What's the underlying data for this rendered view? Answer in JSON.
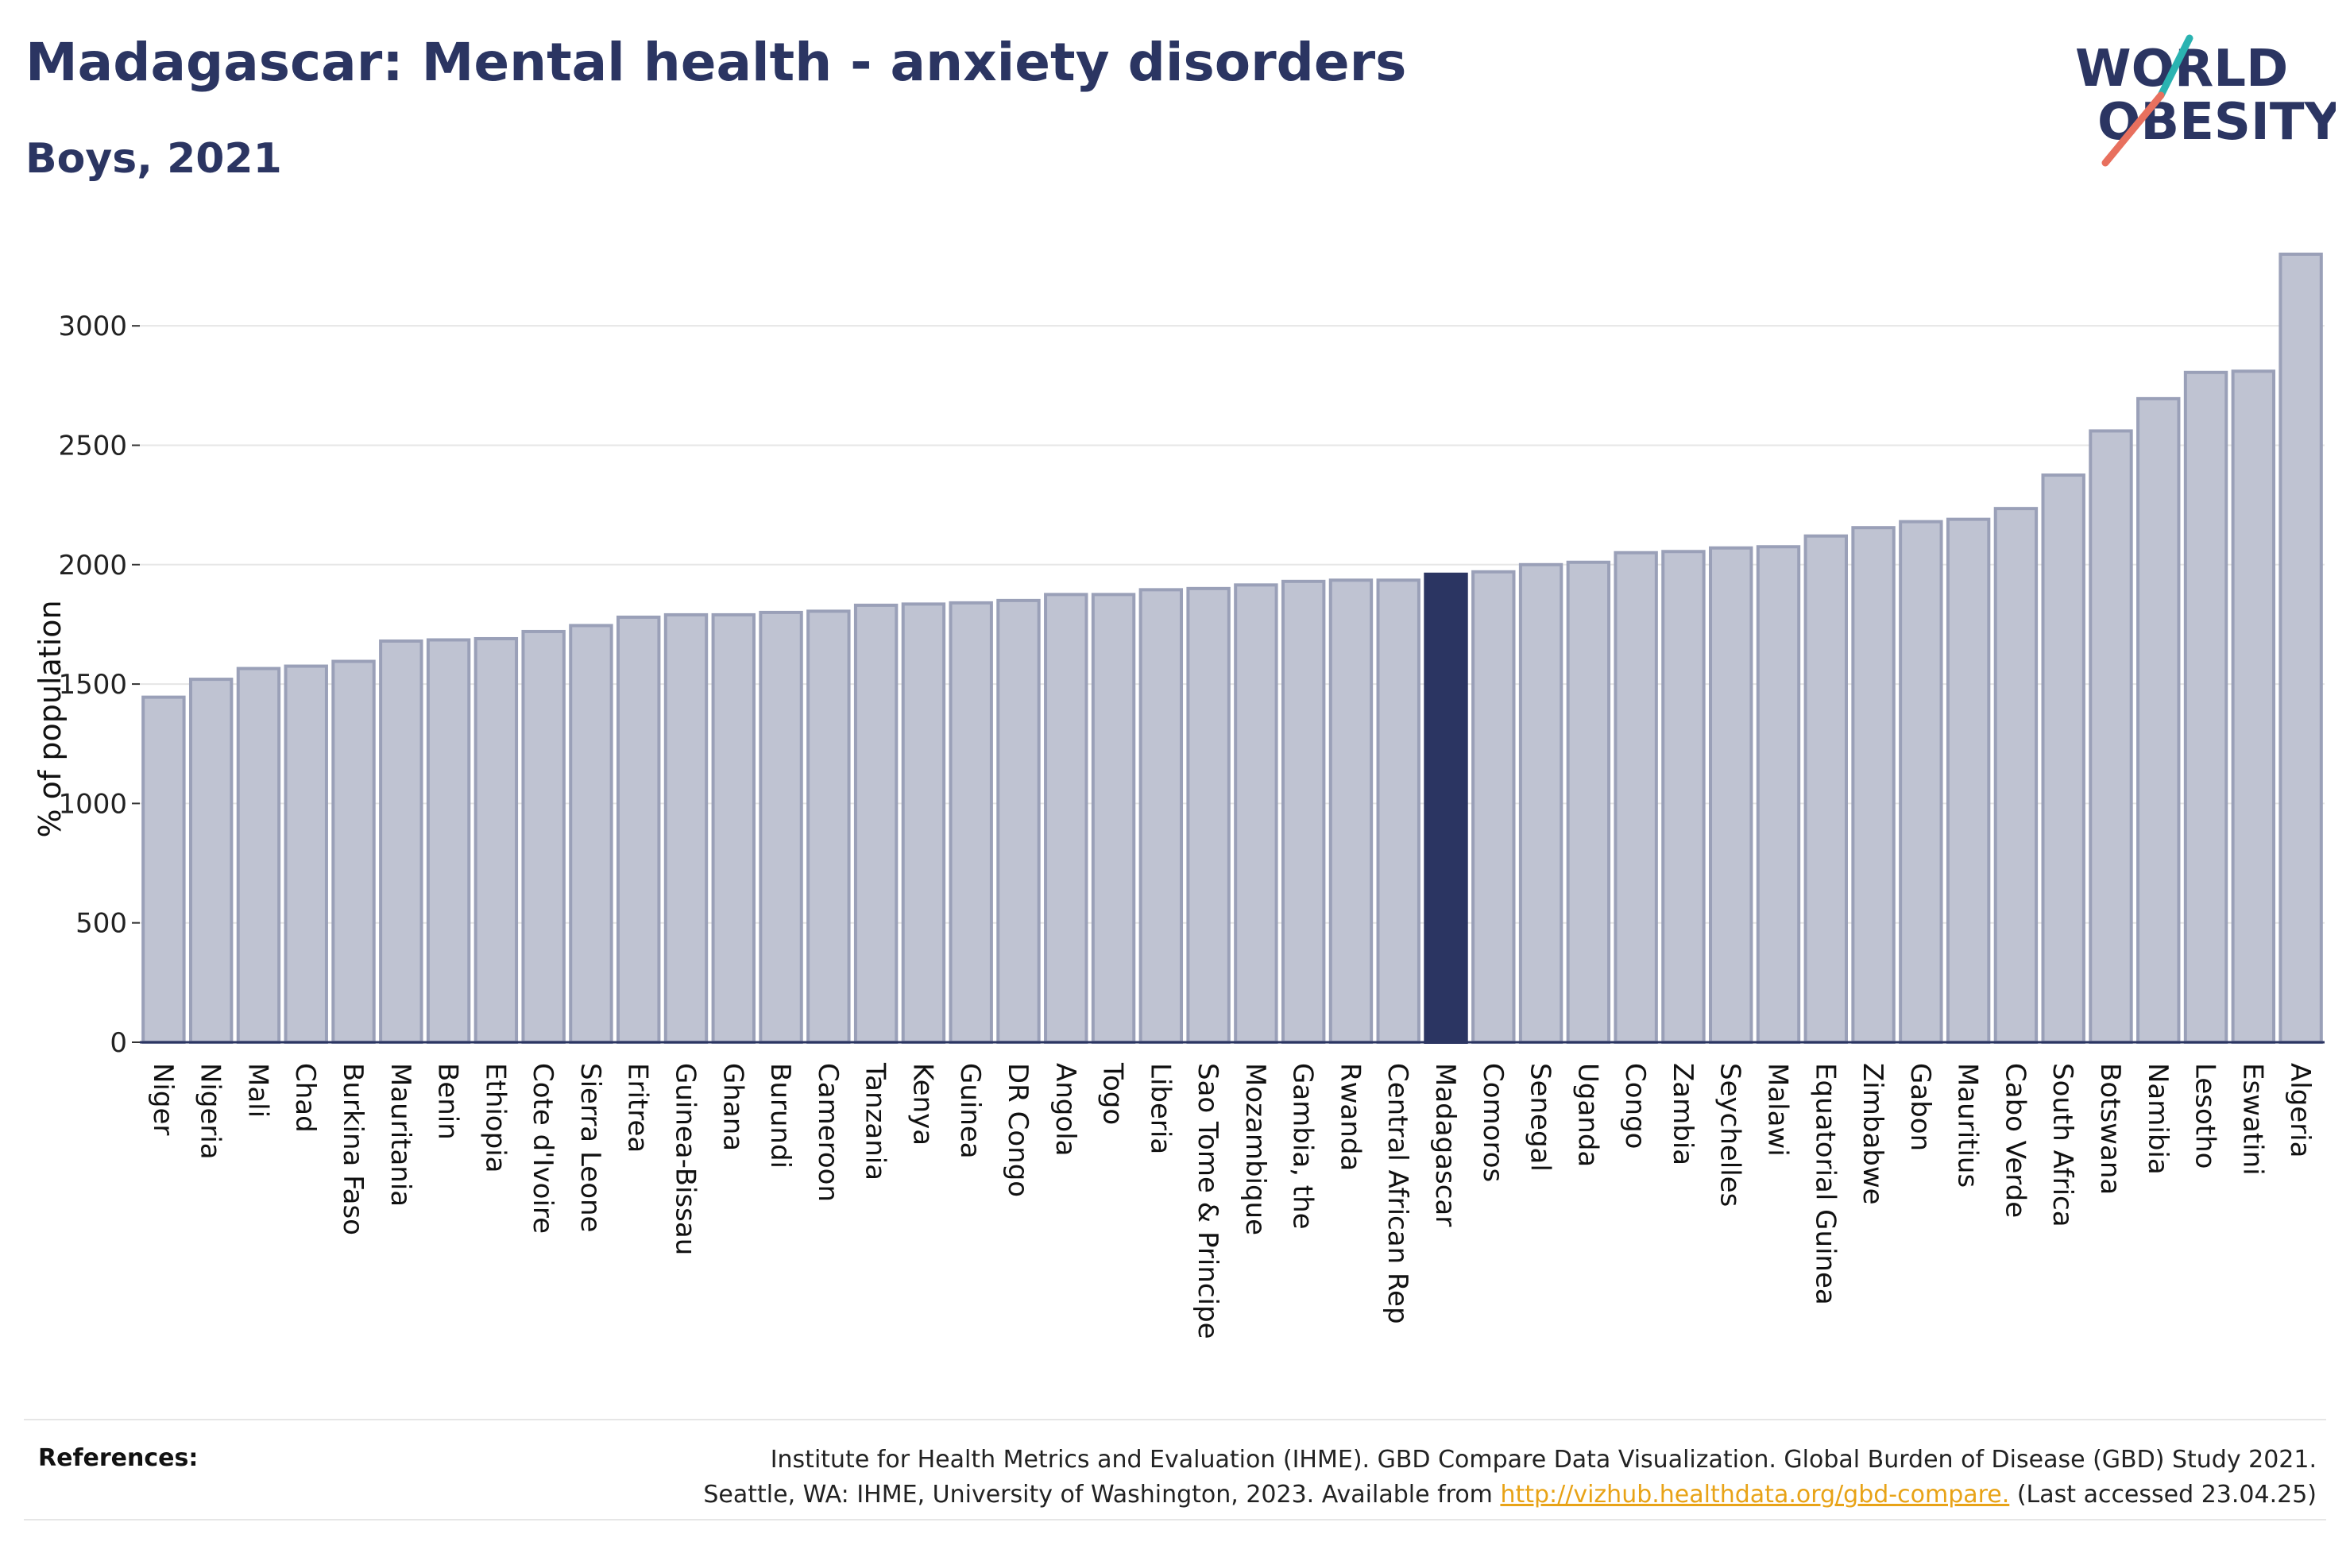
{
  "header": {
    "title": "Madagascar: Mental health - anxiety disorders",
    "subtitle": "Boys, 2021"
  },
  "logo": {
    "line1": "WORLD",
    "line2": "OBESITY"
  },
  "colors": {
    "title": "#2b3562",
    "bar_default": "#bfc3d2",
    "bar_border": "#9aa0b8",
    "bar_highlight": "#2b3562",
    "grid": "#e6e6e6",
    "logo_teal": "#2ab3b1",
    "logo_coral": "#e8705e",
    "link": "#e8a317"
  },
  "chart_data": {
    "type": "bar",
    "ylabel": "% of population",
    "ylim": [
      0,
      3300
    ],
    "yticks": [
      0,
      500,
      1000,
      1500,
      2000,
      2500,
      3000
    ],
    "grid": true,
    "highlight": "Madagascar",
    "categories": [
      "Niger",
      "Nigeria",
      "Mali",
      "Chad",
      "Burkina Faso",
      "Mauritania",
      "Benin",
      "Ethiopia",
      "Cote d'Ivoire",
      "Sierra Leone",
      "Eritrea",
      "Guinea-Bissau",
      "Ghana",
      "Burundi",
      "Cameroon",
      "Tanzania",
      "Kenya",
      "Guinea",
      "DR Congo",
      "Angola",
      "Togo",
      "Liberia",
      "Sao Tome & Principe",
      "Mozambique",
      "Gambia, the",
      "Rwanda",
      "Central African Rep",
      "Madagascar",
      "Comoros",
      "Senegal",
      "Uganda",
      "Congo",
      "Zambia",
      "Seychelles",
      "Malawi",
      "Equatorial Guinea",
      "Zimbabwe",
      "Gabon",
      "Mauritius",
      "Cabo Verde",
      "South Africa",
      "Botswana",
      "Namibia",
      "Lesotho",
      "Eswatini",
      "Algeria"
    ],
    "values": [
      1445,
      1520,
      1565,
      1575,
      1595,
      1680,
      1685,
      1690,
      1720,
      1745,
      1780,
      1790,
      1790,
      1800,
      1805,
      1830,
      1835,
      1840,
      1850,
      1875,
      1875,
      1895,
      1900,
      1915,
      1930,
      1935,
      1935,
      1960,
      1970,
      2000,
      2010,
      2050,
      2055,
      2070,
      2075,
      2120,
      2155,
      2180,
      2190,
      2235,
      2375,
      2560,
      2695,
      2805,
      2810,
      3300
    ]
  },
  "references": {
    "label": "References:",
    "line1": "Institute for Health Metrics and Evaluation (IHME). GBD Compare Data Visualization. Global Burden of Disease (GBD) Study 2021.",
    "line2_prefix": "Seattle, WA: IHME, University of Washington, 2023. Available from ",
    "link": "http://vizhub.healthdata.org/gbd-compare.",
    "line2_suffix": " (Last accessed 23.04.25)"
  }
}
